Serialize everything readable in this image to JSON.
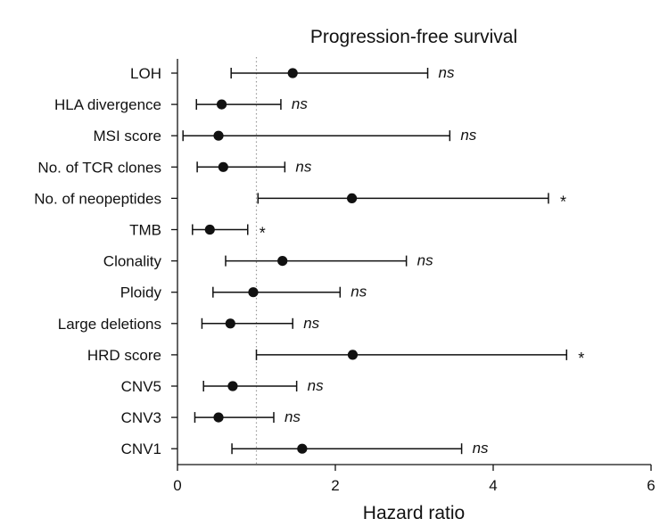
{
  "chart_data": {
    "type": "forest",
    "title": "Progression-free survival",
    "xlabel": "Hazard ratio",
    "xlim": [
      0,
      6
    ],
    "xticks": [
      0,
      2,
      4,
      6
    ],
    "reference_line": 1,
    "grid": false,
    "rows": [
      {
        "label": "LOH",
        "hr": 1.46,
        "lower": 0.68,
        "upper": 3.17,
        "sig": "ns"
      },
      {
        "label": "HLA divergence",
        "hr": 0.56,
        "lower": 0.24,
        "upper": 1.31,
        "sig": "ns"
      },
      {
        "label": "MSI score",
        "hr": 0.52,
        "lower": 0.07,
        "upper": 3.45,
        "sig": "ns"
      },
      {
        "label": "No. of TCR clones",
        "hr": 0.58,
        "lower": 0.25,
        "upper": 1.36,
        "sig": "ns"
      },
      {
        "label": "No. of neopeptides",
        "hr": 2.21,
        "lower": 1.02,
        "upper": 4.7,
        "sig": "*"
      },
      {
        "label": "TMB",
        "hr": 0.41,
        "lower": 0.19,
        "upper": 0.89,
        "sig": "*"
      },
      {
        "label": "Clonality",
        "hr": 1.33,
        "lower": 0.61,
        "upper": 2.9,
        "sig": "ns"
      },
      {
        "label": "Ploidy",
        "hr": 0.96,
        "lower": 0.45,
        "upper": 2.06,
        "sig": "ns"
      },
      {
        "label": "Large deletions",
        "hr": 0.67,
        "lower": 0.31,
        "upper": 1.46,
        "sig": "ns"
      },
      {
        "label": "HRD score",
        "hr": 2.22,
        "lower": 1.0,
        "upper": 4.93,
        "sig": "*"
      },
      {
        "label": "CNV5",
        "hr": 0.7,
        "lower": 0.33,
        "upper": 1.51,
        "sig": "ns"
      },
      {
        "label": "CNV3",
        "hr": 0.52,
        "lower": 0.22,
        "upper": 1.22,
        "sig": "ns"
      },
      {
        "label": "CNV1",
        "hr": 1.58,
        "lower": 0.69,
        "upper": 3.6,
        "sig": "ns"
      }
    ]
  }
}
